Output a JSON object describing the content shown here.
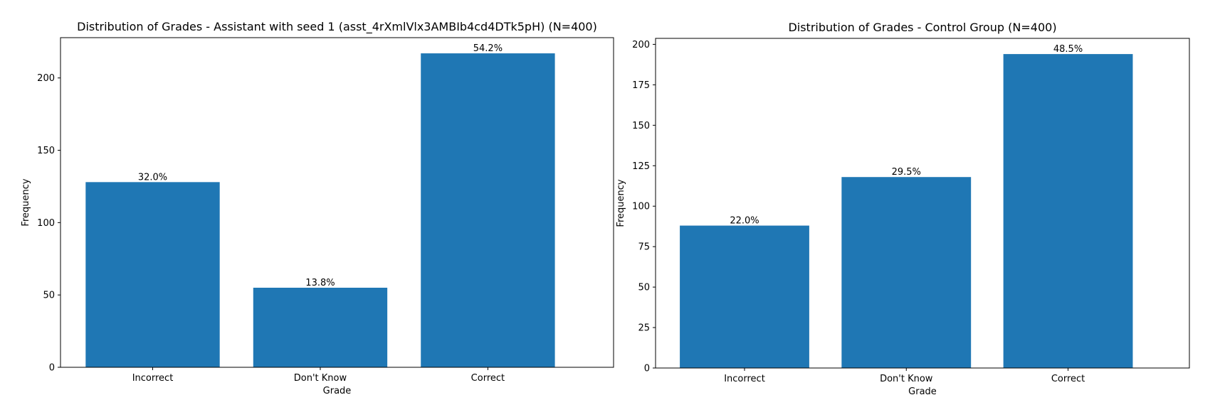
{
  "colors": {
    "bar": "#1f77b4",
    "axis": "#000000",
    "background": "#ffffff"
  },
  "chart_data": [
    {
      "type": "bar",
      "title": "Distribution of Grades - Assistant with seed 1 (asst_4rXmlVlx3AMBIb4cd4DTk5pH) (N=400)",
      "xlabel": "Grade",
      "ylabel": "Frequency",
      "categories": [
        "Incorrect",
        "Don't Know",
        "Correct"
      ],
      "values": [
        128,
        55,
        217
      ],
      "data_labels": [
        "32.0%",
        "13.8%",
        "54.2%"
      ],
      "yticks": [
        0,
        50,
        100,
        150,
        200
      ],
      "ylim": [
        0,
        227.85
      ],
      "grid": false
    },
    {
      "type": "bar",
      "title": "Distribution of Grades - Control Group (N=400)",
      "xlabel": "Grade",
      "ylabel": "Frequency",
      "categories": [
        "Incorrect",
        "Don't Know",
        "Correct"
      ],
      "values": [
        88,
        118,
        194
      ],
      "data_labels": [
        "22.0%",
        "29.5%",
        "48.5%"
      ],
      "yticks": [
        0,
        25,
        50,
        75,
        100,
        125,
        150,
        175,
        200
      ],
      "ylim": [
        0,
        203.7
      ],
      "grid": false
    }
  ]
}
